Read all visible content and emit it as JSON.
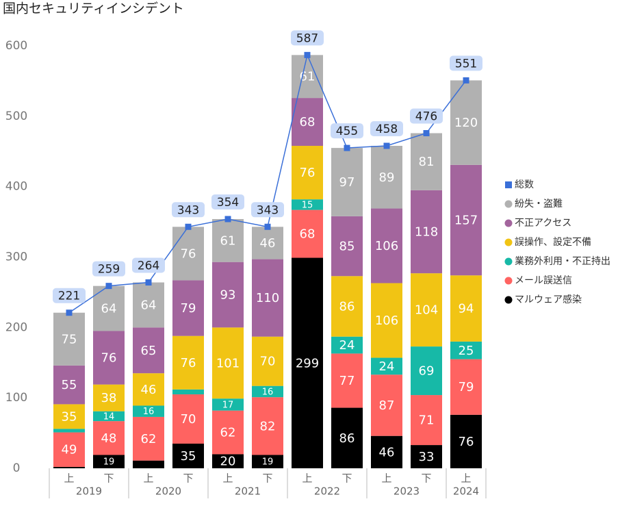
{
  "chart_data": {
    "type": "bar",
    "stacked": true,
    "title": "国内セキュリティインシデント",
    "categories": [
      "上",
      "下",
      "上",
      "下",
      "上",
      "下",
      "上",
      "下",
      "上",
      "下",
      "上"
    ],
    "year_groups": [
      "2019",
      "2020",
      "2021",
      "2022",
      "2023",
      "2024"
    ],
    "ylim": [
      0,
      600
    ],
    "yticks": [
      0,
      100,
      200,
      300,
      400,
      500,
      600
    ],
    "grid": false,
    "legend": "right",
    "series": [
      {
        "name": "マルウェア感染",
        "color": "#000000",
        "values": [
          2,
          19,
          11,
          35,
          20,
          19,
          299,
          86,
          46,
          33,
          76
        ],
        "value_labels": [
          null,
          "19",
          null,
          "35",
          "20",
          "19",
          "299",
          "86",
          "46",
          "33",
          "76"
        ]
      },
      {
        "name": "メール誤送信",
        "color": "#ff6361",
        "values": [
          49,
          48,
          62,
          70,
          62,
          82,
          68,
          77,
          87,
          71,
          79
        ]
      },
      {
        "name": "業務外利用・不正持出",
        "color": "#17b9a7",
        "values": [
          5,
          14,
          16,
          7,
          17,
          16,
          15,
          24,
          24,
          69,
          25
        ],
        "value_labels": [
          null,
          "14",
          "16",
          null,
          "17",
          "16",
          "15",
          "24",
          "24",
          "69",
          "25"
        ]
      },
      {
        "name": "誤操作、設定不備",
        "color": "#f1c414",
        "values": [
          35,
          38,
          46,
          76,
          101,
          70,
          76,
          86,
          106,
          104,
          94
        ]
      },
      {
        "name": "不正アクセス",
        "color": "#a3659d",
        "values": [
          55,
          76,
          65,
          79,
          93,
          110,
          68,
          85,
          106,
          118,
          157
        ]
      },
      {
        "name": "紛失・盗難",
        "color": "#b1b1b1",
        "values": [
          75,
          64,
          64,
          76,
          61,
          46,
          61,
          97,
          89,
          81,
          120
        ]
      }
    ],
    "line_series": {
      "name": "総数",
      "type": "line",
      "color": "#3a6fd8",
      "label_box_color": "#c9daf8",
      "values": [
        221,
        259,
        264,
        343,
        354,
        343,
        587,
        455,
        458,
        476,
        551
      ]
    }
  }
}
